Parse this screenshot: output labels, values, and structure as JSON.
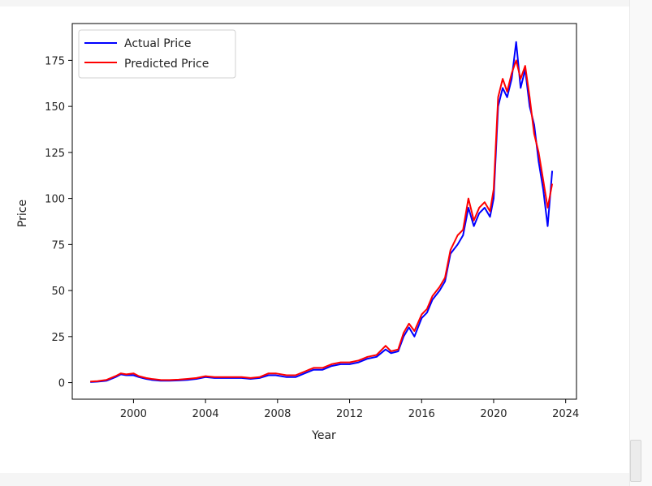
{
  "chart_data": {
    "type": "line",
    "title": "",
    "xlabel": "Year",
    "ylabel": "Price",
    "xlim": [
      1996.6,
      2024.6
    ],
    "ylim": [
      -9,
      195
    ],
    "x_ticks": [
      "2000",
      "2004",
      "2008",
      "2012",
      "2016",
      "2020",
      "2024"
    ],
    "y_ticks": [
      "0",
      "25",
      "50",
      "75",
      "100",
      "125",
      "150",
      "175"
    ],
    "grid": false,
    "legend_position": "top-left",
    "series": [
      {
        "name": "Actual Price",
        "color": "#0000ff",
        "x": [
          1997.6,
          1998.0,
          1998.5,
          1999.0,
          1999.3,
          1999.6,
          2000.0,
          2000.3,
          2000.7,
          2001.0,
          2001.5,
          2002.0,
          2002.5,
          2003.0,
          2003.5,
          2004.0,
          2004.5,
          2005.0,
          2005.5,
          2006.0,
          2006.5,
          2007.0,
          2007.5,
          2007.9,
          2008.5,
          2009.0,
          2009.5,
          2010.0,
          2010.5,
          2011.0,
          2011.5,
          2012.0,
          2012.5,
          2013.0,
          2013.5,
          2014.0,
          2014.3,
          2014.7,
          2015.0,
          2015.3,
          2015.6,
          2016.0,
          2016.3,
          2016.6,
          2017.0,
          2017.3,
          2017.6,
          2018.0,
          2018.3,
          2018.6,
          2018.9,
          2019.2,
          2019.5,
          2019.8,
          2020.0,
          2020.25,
          2020.5,
          2020.75,
          2021.0,
          2021.25,
          2021.5,
          2021.75,
          2022.0,
          2022.25,
          2022.5,
          2022.75,
          2023.0,
          2023.25
        ],
        "values": [
          0.3,
          0.5,
          1,
          3,
          4.5,
          4,
          4,
          3,
          2,
          1.5,
          1,
          1,
          1.2,
          1.5,
          2,
          3,
          2.5,
          2.5,
          2.5,
          2.5,
          2,
          2.5,
          4,
          4,
          3,
          3,
          5,
          7,
          7,
          9,
          10,
          10,
          11,
          13,
          14,
          18,
          16,
          17,
          25,
          30,
          25,
          35,
          38,
          45,
          50,
          55,
          70,
          75,
          80,
          95,
          85,
          92,
          95,
          90,
          100,
          150,
          160,
          155,
          165,
          185,
          160,
          170,
          150,
          140,
          120,
          105,
          85,
          115
        ],
        "note_values_in": "price units"
      },
      {
        "name": "Predicted Price",
        "color": "#ff0000",
        "x": [
          1997.6,
          1998.0,
          1998.5,
          1999.0,
          1999.3,
          1999.6,
          2000.0,
          2000.3,
          2000.7,
          2001.0,
          2001.5,
          2002.0,
          2002.5,
          2003.0,
          2003.5,
          2004.0,
          2004.5,
          2005.0,
          2005.5,
          2006.0,
          2006.5,
          2007.0,
          2007.5,
          2007.9,
          2008.5,
          2009.0,
          2009.5,
          2010.0,
          2010.5,
          2011.0,
          2011.5,
          2012.0,
          2012.5,
          2013.0,
          2013.5,
          2014.0,
          2014.3,
          2014.7,
          2015.0,
          2015.3,
          2015.6,
          2016.0,
          2016.3,
          2016.6,
          2017.0,
          2017.3,
          2017.6,
          2018.0,
          2018.3,
          2018.6,
          2018.9,
          2019.2,
          2019.5,
          2019.8,
          2020.0,
          2020.25,
          2020.5,
          2020.75,
          2021.0,
          2021.25,
          2021.5,
          2021.75,
          2022.0,
          2022.25,
          2022.5,
          2022.75,
          2023.0,
          2023.25
        ],
        "values": [
          0.6,
          0.8,
          1.5,
          3.5,
          5,
          4.5,
          5,
          3.5,
          2.5,
          2,
          1.5,
          1.4,
          1.6,
          2,
          2.5,
          3.5,
          3,
          3,
          3,
          3,
          2.5,
          3,
          5,
          5,
          4,
          4,
          6,
          8,
          8,
          10,
          11,
          11,
          12,
          14,
          15,
          20,
          17,
          18,
          27,
          32,
          28,
          37,
          40,
          47,
          52,
          57,
          72,
          80,
          83,
          100,
          88,
          95,
          98,
          93,
          105,
          155,
          165,
          158,
          168,
          175,
          165,
          172,
          155,
          135,
          125,
          110,
          95,
          108
        ],
        "note_values_in": "price units"
      }
    ]
  }
}
